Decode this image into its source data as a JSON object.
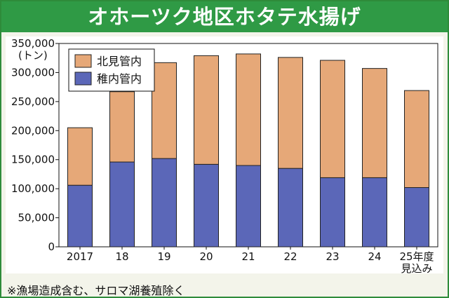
{
  "header": {
    "title": "オホーツク地区ホタテ水揚げ"
  },
  "footnote": "※漁場造成含む、サロマ湖養殖除く",
  "colors": {
    "kitami": "#e6a878",
    "wakkanai": "#5b67b8",
    "title_bg": "#2f9a45",
    "frame": "#2e8b3a"
  },
  "chart_data": {
    "type": "bar",
    "stacked": true,
    "title": "オホーツク地区ホタテ水揚げ",
    "ylabel": "(トン)",
    "xlabel": "",
    "ylim": [
      0,
      350000
    ],
    "yticks": [
      0,
      50000,
      100000,
      150000,
      200000,
      250000,
      300000,
      350000
    ],
    "ytick_labels": [
      "0",
      "50,000",
      "100,000",
      "150,000",
      "200,000",
      "250,000",
      "300,000",
      "350,000"
    ],
    "categories": [
      "2017",
      "18",
      "19",
      "20",
      "21",
      "22",
      "23",
      "24",
      "25年度\n見込み"
    ],
    "series": [
      {
        "name": "稚内管内",
        "values": [
          106000,
          146000,
          152000,
          142000,
          140000,
          135000,
          119000,
          119000,
          102000
        ]
      },
      {
        "name": "北見管内",
        "values": [
          99000,
          121000,
          165000,
          187000,
          192000,
          191000,
          202000,
          188000,
          167000
        ]
      }
    ],
    "totals": [
      205000,
      267000,
      317000,
      329000,
      332000,
      326000,
      321000,
      307000,
      269000
    ],
    "legend": [
      {
        "name": "北見管内",
        "color": "#e6a878"
      },
      {
        "name": "稚内管内",
        "color": "#5b67b8"
      }
    ],
    "legend_position": "top-left"
  }
}
